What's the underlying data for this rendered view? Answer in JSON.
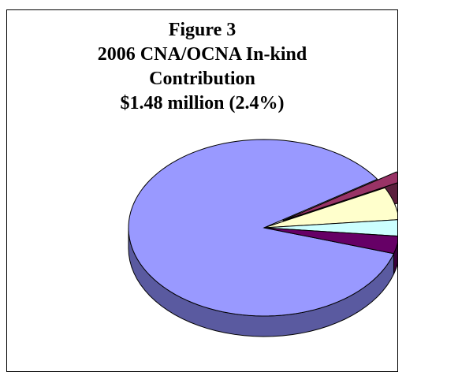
{
  "chart_data": {
    "type": "pie",
    "style": "3d-exploded",
    "title_lines": [
      "Figure 3",
      "2006 CNA/OCNA In-kind",
      "Contribution",
      "$1.48 million (2.4%)"
    ],
    "slices": [
      {
        "value": 86.0,
        "color": "#9999ff",
        "side_color": "#5a5aa0",
        "exploded": false
      },
      {
        "value": 1.8,
        "color": "#993366",
        "side_color": "#5c1f3d",
        "exploded": true
      },
      {
        "value": 6.0,
        "color": "#ffffcc",
        "side_color": "#8c8c66",
        "exploded": false
      },
      {
        "value": 3.0,
        "color": "#ccffff",
        "side_color": "#7fa6a6",
        "exploded": false
      },
      {
        "value": 3.2,
        "color": "#660066",
        "side_color": "#3a003a",
        "exploded": false
      }
    ],
    "start_angle_deg": 17
  }
}
